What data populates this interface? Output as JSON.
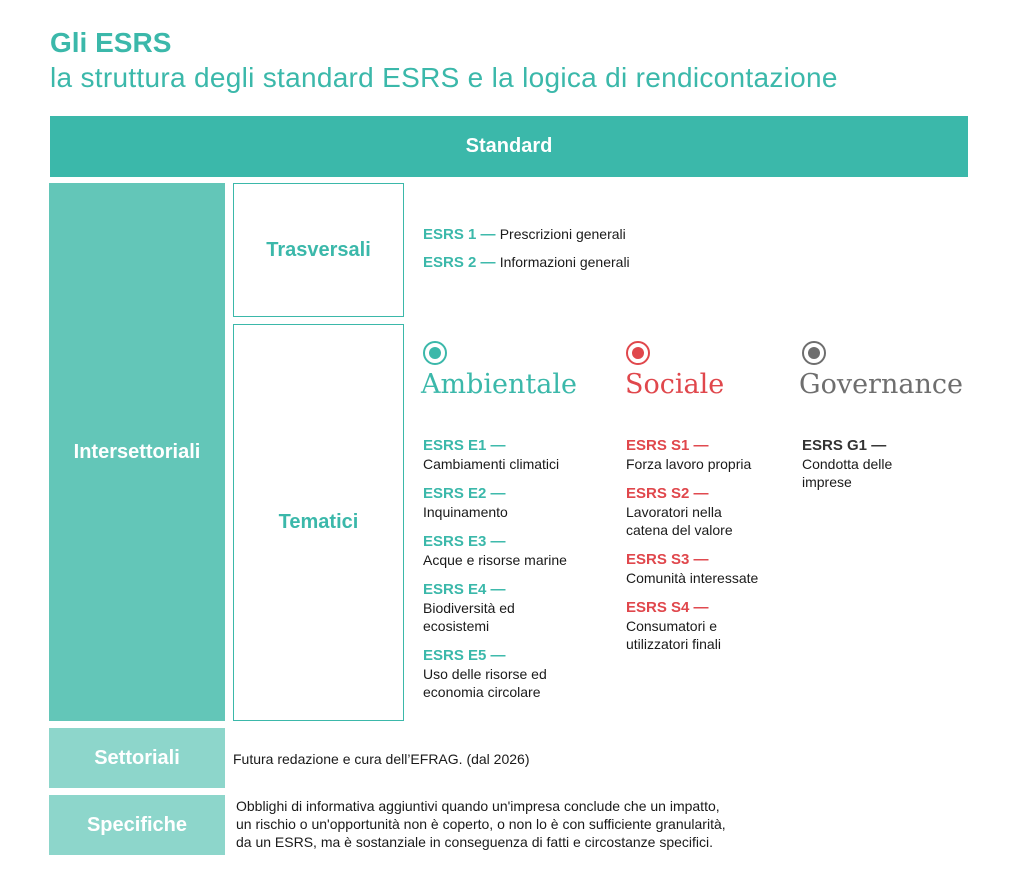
{
  "title": "Gli ESRS",
  "subtitle": "la struttura degli standard ESRS e la logica di rendicontazione",
  "standard_label": "Standard",
  "left_blocks": {
    "intersettoriali": "Intersettoriali",
    "settoriali": "Settoriali",
    "specifiche": "Specifiche"
  },
  "trasversali": {
    "label": "Trasversali",
    "items": [
      {
        "code": "ESRS 1 —",
        "desc": "Prescrizioni generali"
      },
      {
        "code": "ESRS 2 —",
        "desc": "Informazioni generali"
      }
    ]
  },
  "tematici": {
    "label": "Tematici",
    "categories": [
      {
        "name": "Ambientale",
        "color": "#3bb8aa",
        "icon": "radio-dot-icon",
        "items": [
          {
            "code": "ESRS E1 —",
            "desc": "Cambiamenti climatici"
          },
          {
            "code": "ESRS E2 —",
            "desc": "Inquinamento"
          },
          {
            "code": "ESRS E3 —",
            "desc": "Acque e risorse marine"
          },
          {
            "code": "ESRS E4 —",
            "desc1": "Biodiversità ed",
            "desc2": "ecosistemi"
          },
          {
            "code": "ESRS E5 —",
            "desc1": "Uso delle risorse ed",
            "desc2": "economia circolare"
          }
        ]
      },
      {
        "name": "Sociale",
        "color": "#e0474c",
        "icon": "radio-dot-icon",
        "items": [
          {
            "code": "ESRS S1 —",
            "desc": "Forza lavoro propria"
          },
          {
            "code": "ESRS S2 —",
            "desc1": "Lavoratori nella",
            "desc2": "catena del valore"
          },
          {
            "code": "ESRS S3 —",
            "desc": "Comunità interessate"
          },
          {
            "code": "ESRS S4 —",
            "desc1": "Consumatori e",
            "desc2": "utilizzatori finali"
          }
        ]
      },
      {
        "name": "Governance",
        "color": "#6e6e6e",
        "icon": "radio-dot-icon",
        "items": [
          {
            "code": "ESRS G1 —",
            "desc1": "Condotta delle",
            "desc2": "imprese"
          }
        ]
      }
    ]
  },
  "settoriali_text": "Futura redazione e cura dell’EFRAG. (dal 2026)",
  "specifiche_text": {
    "line1": "Obblighi di informativa aggiuntivi quando un'impresa conclude che un impatto,",
    "line2": "un rischio o un'opportunità non è coperto, o non lo è  con sufficiente granularità,",
    "line3": "da un ESRS, ma è sostanziale in conseguenza di fatti e circostanze specifici."
  }
}
